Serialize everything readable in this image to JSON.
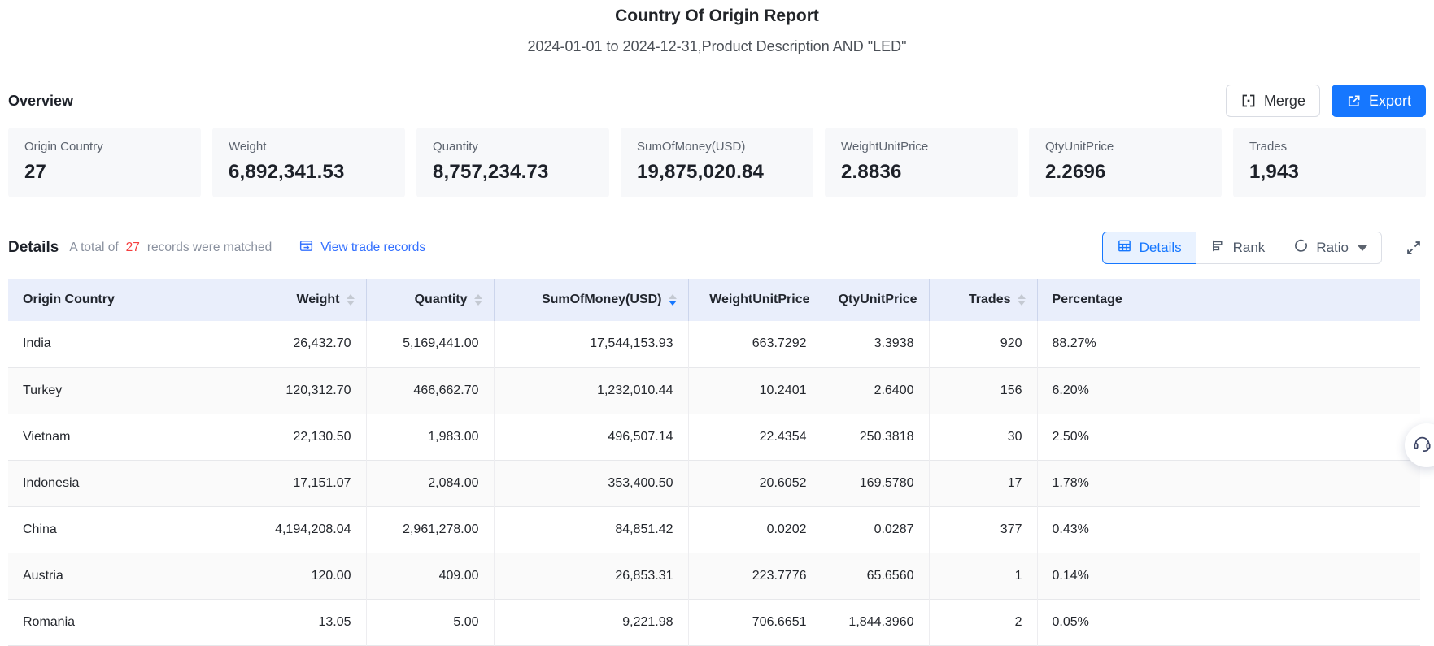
{
  "report": {
    "title": "Country Of Origin Report",
    "subtitle": "2024-01-01 to 2024-12-31,Product Description AND \"LED\""
  },
  "overview": {
    "section_title": "Overview",
    "merge_label": "Merge",
    "export_label": "Export",
    "cards": [
      {
        "label": "Origin Country",
        "value": "27"
      },
      {
        "label": "Weight",
        "value": "6,892,341.53"
      },
      {
        "label": "Quantity",
        "value": "8,757,234.73"
      },
      {
        "label": "SumOfMoney(USD)",
        "value": "19,875,020.84"
      },
      {
        "label": "WeightUnitPrice",
        "value": "2.8836"
      },
      {
        "label": "QtyUnitPrice",
        "value": "2.2696"
      },
      {
        "label": "Trades",
        "value": "1,943"
      }
    ]
  },
  "details": {
    "section_title": "Details",
    "matched_prefix": "A total of",
    "matched_count": "27",
    "matched_suffix": "records were matched",
    "view_trade_records": "View trade records",
    "view_modes": [
      {
        "label": "Details",
        "active": true
      },
      {
        "label": "Rank",
        "active": false
      },
      {
        "label": "Ratio",
        "active": false,
        "dropdown": true
      }
    ]
  },
  "table": {
    "columns": [
      {
        "label": "Origin Country",
        "align": "left",
        "sortable": false,
        "sort": null
      },
      {
        "label": "Weight",
        "align": "right",
        "sortable": true,
        "sort": null
      },
      {
        "label": "Quantity",
        "align": "right",
        "sortable": true,
        "sort": null
      },
      {
        "label": "SumOfMoney(USD)",
        "align": "right",
        "sortable": true,
        "sort": "desc"
      },
      {
        "label": "WeightUnitPrice",
        "align": "right",
        "sortable": false,
        "sort": null
      },
      {
        "label": "QtyUnitPrice",
        "align": "right",
        "sortable": false,
        "sort": null
      },
      {
        "label": "Trades",
        "align": "right",
        "sortable": true,
        "sort": null
      },
      {
        "label": "Percentage",
        "align": "left",
        "sortable": false,
        "sort": null
      }
    ],
    "rows": [
      [
        "India",
        "26,432.70",
        "5,169,441.00",
        "17,544,153.93",
        "663.7292",
        "3.3938",
        "920",
        "88.27%"
      ],
      [
        "Turkey",
        "120,312.70",
        "466,662.70",
        "1,232,010.44",
        "10.2401",
        "2.6400",
        "156",
        "6.20%"
      ],
      [
        "Vietnam",
        "22,130.50",
        "1,983.00",
        "496,507.14",
        "22.4354",
        "250.3818",
        "30",
        "2.50%"
      ],
      [
        "Indonesia",
        "17,151.07",
        "2,084.00",
        "353,400.50",
        "20.6052",
        "169.5780",
        "17",
        "1.78%"
      ],
      [
        "China",
        "4,194,208.04",
        "2,961,278.00",
        "84,851.42",
        "0.0202",
        "0.0287",
        "377",
        "0.43%"
      ],
      [
        "Austria",
        "120.00",
        "409.00",
        "26,853.31",
        "223.7776",
        "65.6560",
        "1",
        "0.14%"
      ],
      [
        "Romania",
        "13.05",
        "5.00",
        "9,221.98",
        "706.6651",
        "1,844.3960",
        "2",
        "0.05%"
      ]
    ]
  },
  "colors": {
    "accent_blue": "#1677ff",
    "link_blue": "#3370ff",
    "count_red": "#f53f3f",
    "header_bg": "#e9eefb",
    "card_bg": "#f7f8fa"
  }
}
